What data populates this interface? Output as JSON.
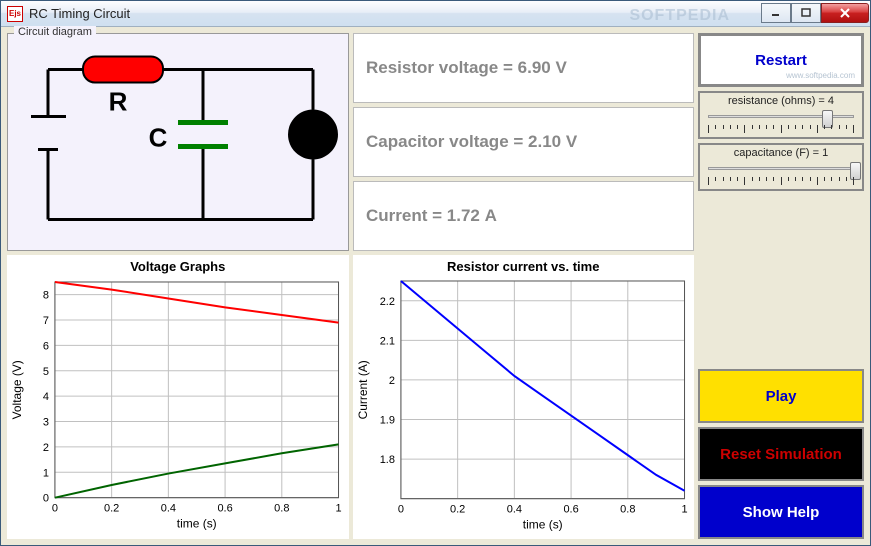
{
  "window": {
    "title": "RC Timing Circuit",
    "watermark": "SOFTPEDIA"
  },
  "circuit": {
    "fieldset_label": "Circuit diagram",
    "resistor_label": "R",
    "capacitor_label": "C",
    "resistor_color": "#ff0000",
    "capacitor_color": "#008000",
    "bulb_color": "#000000",
    "wire_color": "#000000",
    "bg_color": "#f4f2fc"
  },
  "readouts": {
    "resistor_voltage": {
      "label": "Resistor voltage",
      "value": "6.90",
      "unit": "V"
    },
    "capacitor_voltage": {
      "label": "Capacitor voltage",
      "value": "2.10",
      "unit": "V"
    },
    "current": {
      "label": "Current",
      "value": "1.72",
      "unit": "A"
    }
  },
  "buttons": {
    "restart": "Restart",
    "play": "Play",
    "reset_sim": "Reset Simulation",
    "show_help": "Show Help",
    "softpedia_sub": "www.softpedia.com"
  },
  "sliders": {
    "resistance": {
      "label": "resistance (ohms) = ",
      "value": 4,
      "min": 0,
      "max": 5,
      "pos_pct": 80
    },
    "capacitance": {
      "label": "capacitance (F) = ",
      "value": 1,
      "min": 0,
      "max": 1,
      "pos_pct": 98
    }
  },
  "chart1": {
    "title": "Voltage Graphs",
    "xlabel": "time (s)",
    "ylabel": "Voltage (V)",
    "xlim": [
      0,
      1.0
    ],
    "xticks": [
      0,
      0.2,
      0.4,
      0.6,
      0.8,
      1.0
    ],
    "ylim": [
      0,
      8.5
    ],
    "yticks": [
      0,
      1,
      2,
      3,
      4,
      5,
      6,
      7,
      8
    ],
    "grid_color": "#c0c0c0",
    "bg_color": "#ffffff",
    "series": [
      {
        "color": "#ff0000",
        "width": 2,
        "points": [
          [
            0,
            8.5
          ],
          [
            0.2,
            8.2
          ],
          [
            0.4,
            7.85
          ],
          [
            0.6,
            7.5
          ],
          [
            0.8,
            7.2
          ],
          [
            1.0,
            6.9
          ]
        ]
      },
      {
        "color": "#006400",
        "width": 2,
        "points": [
          [
            0,
            0.0
          ],
          [
            0.2,
            0.5
          ],
          [
            0.4,
            0.95
          ],
          [
            0.6,
            1.35
          ],
          [
            0.8,
            1.75
          ],
          [
            1.0,
            2.1
          ]
        ]
      }
    ]
  },
  "chart2": {
    "title": "Resistor current vs. time",
    "xlabel": "time (s)",
    "ylabel": "Current (A)",
    "xlim": [
      0,
      1.0
    ],
    "xticks": [
      0,
      0.2,
      0.4,
      0.6,
      0.8,
      1.0
    ],
    "ylim": [
      1.7,
      2.25
    ],
    "yticks": [
      1.8,
      1.9,
      2.0,
      2.1,
      2.2
    ],
    "grid_color": "#c0c0c0",
    "bg_color": "#ffffff",
    "series": [
      {
        "color": "#0000ff",
        "width": 2,
        "points": [
          [
            0,
            2.25
          ],
          [
            0.1,
            2.19
          ],
          [
            0.2,
            2.13
          ],
          [
            0.3,
            2.07
          ],
          [
            0.4,
            2.01
          ],
          [
            0.5,
            1.96
          ],
          [
            0.6,
            1.91
          ],
          [
            0.7,
            1.86
          ],
          [
            0.8,
            1.81
          ],
          [
            0.9,
            1.76
          ],
          [
            1.0,
            1.72
          ]
        ]
      }
    ]
  }
}
